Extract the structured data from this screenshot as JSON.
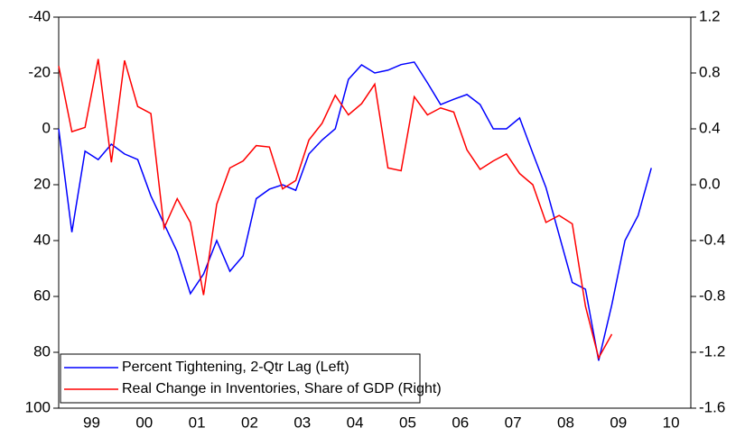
{
  "chart_data": {
    "type": "line",
    "x": [
      1998.75,
      1999,
      1999.25,
      1999.5,
      1999.75,
      2000,
      2000.25,
      2000.5,
      2000.75,
      2001,
      2001.25,
      2001.5,
      2001.75,
      2002,
      2002.25,
      2002.5,
      2002.75,
      2003,
      2003.25,
      2003.5,
      2003.75,
      2004,
      2004.25,
      2004.5,
      2004.75,
      2005,
      2005.25,
      2005.5,
      2005.75,
      2006,
      2006.25,
      2006.5,
      2006.75,
      2007,
      2007.25,
      2007.5,
      2007.75,
      2008,
      2008.25,
      2008.5,
      2008.75,
      2009,
      2009.25,
      2009.5,
      2009.75,
      2010
    ],
    "xlim": [
      1998.75,
      2010.75
    ],
    "xticks": [
      {
        "value": 1999.375,
        "label": "99"
      },
      {
        "value": 2000.375,
        "label": "00"
      },
      {
        "value": 2001.375,
        "label": "01"
      },
      {
        "value": 2002.375,
        "label": "02"
      },
      {
        "value": 2003.375,
        "label": "03"
      },
      {
        "value": 2004.375,
        "label": "04"
      },
      {
        "value": 2005.375,
        "label": "05"
      },
      {
        "value": 2006.375,
        "label": "06"
      },
      {
        "value": 2007.375,
        "label": "07"
      },
      {
        "value": 2008.375,
        "label": "08"
      },
      {
        "value": 2009.375,
        "label": "09"
      },
      {
        "value": 2010.375,
        "label": "10"
      }
    ],
    "ylim": [
      -40,
      100
    ],
    "y_inverted": true,
    "yticks": [
      -40,
      -20,
      0,
      20,
      40,
      60,
      80,
      100
    ],
    "y2lim": [
      -1.6,
      1.2
    ],
    "y2ticks": [
      1.2,
      0.8,
      0.4,
      {
        "value": 0,
        "label": "0.0"
      },
      -0.4,
      -0.8,
      -1.2,
      -1.6
    ],
    "legend": "lower left",
    "series": [
      {
        "name": "Percent Tightening, 2-Qtr Lag (Left)",
        "color": "#0000ff",
        "axis": "y",
        "values": [
          0,
          37,
          8,
          11,
          5.5,
          9,
          11,
          24,
          34,
          44,
          59,
          52,
          40,
          51,
          45.5,
          25,
          21.6,
          20,
          22,
          9,
          4,
          0,
          -17.7,
          -22.9,
          -20,
          -21,
          -23,
          -23.9,
          -16.5,
          -8.7,
          -10.6,
          -12.3,
          -8.7,
          0,
          0,
          -3.9,
          8.7,
          21,
          38,
          55,
          57.4,
          83,
          63,
          40,
          31,
          14
        ]
      },
      {
        "name": "Real Change in Inventories, Share of GDP (Right)",
        "color": "#ff0000",
        "axis": "y2",
        "values": [
          0.85,
          0.38,
          0.41,
          0.9,
          0.16,
          0.89,
          0.56,
          0.51,
          -0.31,
          -0.1,
          -0.27,
          -0.79,
          -0.14,
          0.12,
          0.17,
          0.28,
          0.27,
          -0.03,
          0.03,
          0.32,
          0.44,
          0.64,
          0.5,
          0.58,
          0.72,
          0.12,
          0.1,
          0.63,
          0.5,
          0.55,
          0.52,
          0.25,
          0.11,
          0.17,
          0.22,
          0.08,
          0,
          -0.27,
          -0.22,
          -0.28,
          -0.87,
          -1.24,
          -1.07,
          null,
          null,
          null
        ]
      }
    ]
  }
}
